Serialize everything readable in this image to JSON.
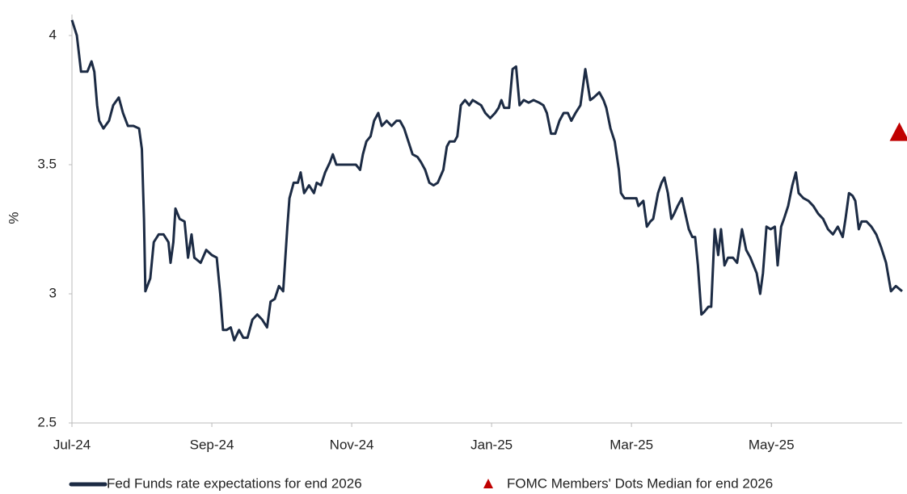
{
  "chart_data": {
    "type": "line",
    "y_label": "%",
    "xlim": [
      0,
      11.87
    ],
    "ylim": [
      2.5,
      4.1
    ],
    "xticks": [
      {
        "value": 0,
        "label": "Jul-24"
      },
      {
        "value": 2,
        "label": "Sep-24"
      },
      {
        "value": 4,
        "label": "Nov-24"
      },
      {
        "value": 6,
        "label": "Jan-25"
      },
      {
        "value": 8,
        "label": "Mar-25"
      },
      {
        "value": 10,
        "label": "May-25"
      }
    ],
    "yticks": [
      2.5,
      3,
      3.5,
      4
    ],
    "grid": false,
    "legend": "bottom",
    "series": [
      {
        "name": "Fed Funds rate expectations for end 2026",
        "color": "#1c2b44",
        "marker": "line",
        "x": [
          0,
          0.07,
          0.13,
          0.22,
          0.28,
          0.32,
          0.36,
          0.39,
          0.45,
          0.53,
          0.59,
          0.67,
          0.73,
          0.8,
          0.88,
          0.96,
          1,
          1.03,
          1.05,
          1.12,
          1.17,
          1.24,
          1.31,
          1.38,
          1.41,
          1.45,
          1.48,
          1.54,
          1.61,
          1.66,
          1.71,
          1.75,
          1.84,
          1.92,
          2,
          2.07,
          2.12,
          2.16,
          2.21,
          2.27,
          2.32,
          2.39,
          2.45,
          2.51,
          2.58,
          2.65,
          2.72,
          2.79,
          2.84,
          2.9,
          2.96,
          3.02,
          3.08,
          3.11,
          3.17,
          3.23,
          3.27,
          3.32,
          3.39,
          3.46,
          3.5,
          3.56,
          3.62,
          3.69,
          3.73,
          3.78,
          3.85,
          3.92,
          3.99,
          4.06,
          4.12,
          4.16,
          4.21,
          4.27,
          4.32,
          4.38,
          4.43,
          4.5,
          4.57,
          4.64,
          4.69,
          4.75,
          4.81,
          4.87,
          4.94,
          4.99,
          5.05,
          5.11,
          5.17,
          5.23,
          5.31,
          5.36,
          5.4,
          5.47,
          5.51,
          5.56,
          5.62,
          5.68,
          5.73,
          5.79,
          5.85,
          5.91,
          5.98,
          6.05,
          6.1,
          6.14,
          6.18,
          6.25,
          6.3,
          6.35,
          6.4,
          6.46,
          6.53,
          6.6,
          6.68,
          6.74,
          6.79,
          6.85,
          6.91,
          6.97,
          7.03,
          7.09,
          7.14,
          7.2,
          7.27,
          7.34,
          7.41,
          7.46,
          7.54,
          7.6,
          7.64,
          7.7,
          7.76,
          7.82,
          7.85,
          7.9,
          7.95,
          8.01,
          8.07,
          8.1,
          8.17,
          8.22,
          8.27,
          8.31,
          8.38,
          8.43,
          8.47,
          8.52,
          8.57,
          8.61,
          8.66,
          8.72,
          8.77,
          8.82,
          8.87,
          8.91,
          8.95,
          9,
          9.04,
          9.1,
          9.14,
          9.19,
          9.24,
          9.28,
          9.33,
          9.38,
          9.45,
          9.51,
          9.58,
          9.64,
          9.7,
          9.79,
          9.84,
          9.88,
          9.93,
          9.99,
          10.05,
          10.09,
          10.14,
          10.18,
          10.24,
          10.3,
          10.35,
          10.39,
          10.46,
          10.53,
          10.6,
          10.67,
          10.74,
          10.81,
          10.88,
          10.95,
          11.02,
          11.06,
          11.11,
          11.16,
          11.2,
          11.25,
          11.29,
          11.36,
          11.43,
          11.5,
          11.57,
          11.64,
          11.71,
          11.78,
          11.87
        ],
        "values": [
          4.06,
          4,
          3.86,
          3.86,
          3.9,
          3.86,
          3.73,
          3.67,
          3.64,
          3.67,
          3.73,
          3.76,
          3.7,
          3.65,
          3.65,
          3.64,
          3.56,
          3.29,
          3.01,
          3.06,
          3.2,
          3.23,
          3.23,
          3.2,
          3.12,
          3.2,
          3.33,
          3.29,
          3.28,
          3.14,
          3.23,
          3.14,
          3.12,
          3.17,
          3.15,
          3.14,
          3,
          2.86,
          2.86,
          2.87,
          2.82,
          2.86,
          2.83,
          2.83,
          2.9,
          2.92,
          2.9,
          2.87,
          2.97,
          2.98,
          3.03,
          3.01,
          3.26,
          3.37,
          3.43,
          3.43,
          3.47,
          3.39,
          3.42,
          3.39,
          3.43,
          3.42,
          3.47,
          3.51,
          3.54,
          3.5,
          3.5,
          3.5,
          3.5,
          3.5,
          3.48,
          3.54,
          3.59,
          3.61,
          3.67,
          3.7,
          3.65,
          3.67,
          3.65,
          3.67,
          3.67,
          3.64,
          3.59,
          3.54,
          3.53,
          3.51,
          3.48,
          3.43,
          3.42,
          3.43,
          3.48,
          3.57,
          3.59,
          3.59,
          3.61,
          3.73,
          3.75,
          3.73,
          3.75,
          3.74,
          3.73,
          3.7,
          3.68,
          3.7,
          3.72,
          3.75,
          3.72,
          3.72,
          3.87,
          3.88,
          3.73,
          3.75,
          3.74,
          3.75,
          3.74,
          3.73,
          3.7,
          3.62,
          3.62,
          3.67,
          3.7,
          3.7,
          3.67,
          3.7,
          3.73,
          3.87,
          3.75,
          3.76,
          3.78,
          3.75,
          3.72,
          3.64,
          3.59,
          3.48,
          3.39,
          3.37,
          3.37,
          3.37,
          3.37,
          3.34,
          3.36,
          3.26,
          3.28,
          3.29,
          3.39,
          3.43,
          3.45,
          3.39,
          3.29,
          3.31,
          3.34,
          3.37,
          3.31,
          3.25,
          3.22,
          3.22,
          3.11,
          2.92,
          2.93,
          2.95,
          2.95,
          3.25,
          3.15,
          3.25,
          3.11,
          3.14,
          3.14,
          3.12,
          3.25,
          3.17,
          3.14,
          3.08,
          3,
          3.08,
          3.26,
          3.25,
          3.26,
          3.11,
          3.26,
          3.29,
          3.34,
          3.42,
          3.47,
          3.39,
          3.37,
          3.36,
          3.34,
          3.31,
          3.29,
          3.25,
          3.23,
          3.26,
          3.22,
          3.29,
          3.39,
          3.38,
          3.36,
          3.25,
          3.28,
          3.28,
          3.26,
          3.23,
          3.18,
          3.12,
          3.01,
          3.03,
          3.01
        ]
      },
      {
        "name": "FOMC Members' Dots Median for end 2026",
        "color": "#c00000",
        "marker": "triangle",
        "x": [
          11.83
        ],
        "values": [
          3.62
        ]
      }
    ]
  }
}
